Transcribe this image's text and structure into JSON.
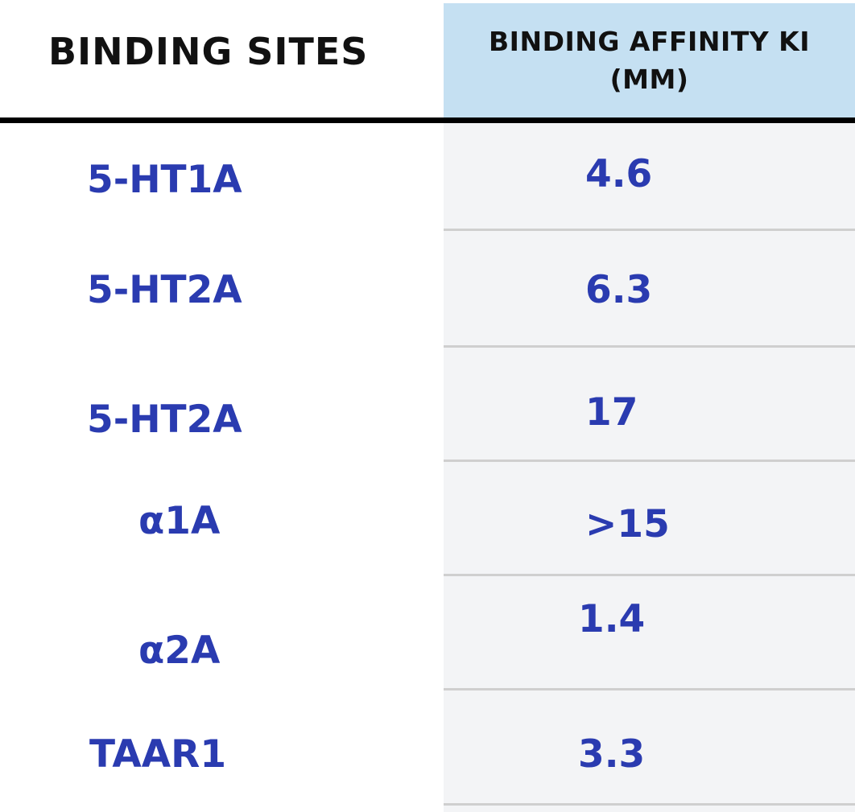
{
  "table": {
    "headers": {
      "site": "BINDING SITES",
      "affinity_line1": "BINDING AFFINITY KI",
      "affinity_line2": "(MM)"
    },
    "rows": [
      {
        "site": "5-HT1A",
        "affinity": "4.6"
      },
      {
        "site": "5-HT2A",
        "affinity": "6.3"
      },
      {
        "site": "5-HT2A",
        "affinity": "17"
      },
      {
        "site": "α1A",
        "affinity": ">15"
      },
      {
        "site": "α2A",
        "affinity": "1.4"
      },
      {
        "site": "TAAR1",
        "affinity": "3.3"
      }
    ]
  },
  "colors": {
    "header_bg": "#c5e0f2",
    "cell_text": "#2a3bb0",
    "column_bg": "#f3f4f6",
    "rule": "#000000"
  }
}
